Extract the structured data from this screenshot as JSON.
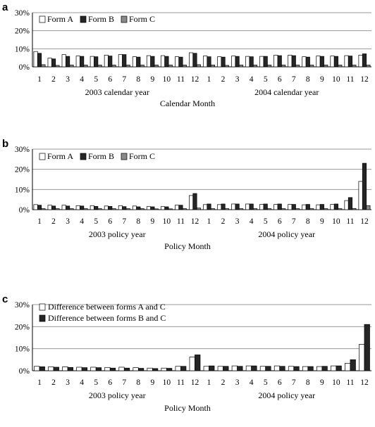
{
  "chart_data": [
    {
      "panel_label": "a",
      "type": "bar",
      "ylim": [
        0,
        30
      ],
      "yticks": [
        "0%",
        "10%",
        "20%",
        "30%"
      ],
      "grid": true,
      "legend_placement": "top-left",
      "categories": [
        "1",
        "2",
        "3",
        "4",
        "5",
        "6",
        "7",
        "8",
        "9",
        "10",
        "11",
        "12",
        "1",
        "2",
        "3",
        "4",
        "5",
        "6",
        "7",
        "8",
        "9",
        "10",
        "11",
        "12"
      ],
      "groups": [
        "2003 calendar year",
        "2004 calendar year"
      ],
      "xlabel": "Calendar Month",
      "series": [
        {
          "name": "Form A",
          "color": "#ffffff",
          "values": [
            8.5,
            4.8,
            6.8,
            6.0,
            5.8,
            6.5,
            6.8,
            5.6,
            6.2,
            6.2,
            5.6,
            7.8,
            6.0,
            5.6,
            6.0,
            5.8,
            5.8,
            6.5,
            6.5,
            5.6,
            6.0,
            6.0,
            6.2,
            6.5
          ]
        },
        {
          "name": "Form B",
          "color": "#262626",
          "values": [
            7.5,
            4.4,
            5.8,
            5.8,
            5.6,
            6.0,
            6.8,
            5.4,
            5.8,
            5.8,
            5.4,
            7.5,
            5.6,
            5.4,
            5.8,
            5.6,
            5.8,
            6.2,
            6.2,
            5.4,
            5.8,
            5.8,
            6.0,
            7.2
          ]
        },
        {
          "name": "Form C",
          "color": "#8a8a8a",
          "values": [
            1.2,
            0.8,
            1.0,
            1.0,
            1.0,
            1.0,
            1.0,
            1.0,
            1.0,
            1.0,
            1.0,
            1.2,
            1.0,
            0.8,
            1.0,
            1.0,
            1.0,
            1.0,
            1.0,
            1.0,
            1.0,
            1.0,
            1.0,
            1.0
          ]
        }
      ]
    },
    {
      "panel_label": "b",
      "type": "bar",
      "ylim": [
        0,
        30
      ],
      "yticks": [
        "0%",
        "10%",
        "20%",
        "30%"
      ],
      "grid": true,
      "legend_placement": "top-left",
      "categories": [
        "1",
        "2",
        "3",
        "4",
        "5",
        "6",
        "7",
        "8",
        "9",
        "10",
        "11",
        "12",
        "1",
        "2",
        "3",
        "4",
        "5",
        "6",
        "7",
        "8",
        "9",
        "10",
        "11",
        "12"
      ],
      "groups": [
        "2003 policy year",
        "2004 policy year"
      ],
      "xlabel": "Policy Month",
      "series": [
        {
          "name": "Form A",
          "color": "#ffffff",
          "values": [
            2.5,
            2.2,
            2.2,
            2.0,
            2.0,
            1.8,
            2.0,
            1.8,
            1.5,
            1.5,
            2.2,
            7.0,
            2.5,
            2.5,
            2.8,
            2.8,
            2.6,
            2.6,
            2.6,
            2.4,
            2.4,
            2.6,
            4.5,
            14.0
          ]
        },
        {
          "name": "Form B",
          "color": "#262626",
          "values": [
            2.2,
            1.8,
            1.8,
            1.8,
            1.6,
            1.6,
            1.5,
            1.4,
            1.4,
            1.4,
            2.2,
            8.0,
            2.8,
            2.8,
            2.8,
            2.8,
            2.8,
            2.8,
            2.6,
            2.6,
            2.6,
            2.8,
            6.0,
            23.0
          ]
        },
        {
          "name": "Form C",
          "color": "#8a8a8a",
          "values": [
            0.5,
            0.5,
            0.5,
            0.5,
            0.5,
            0.5,
            0.5,
            0.5,
            0.4,
            0.4,
            0.5,
            0.8,
            0.5,
            0.5,
            0.5,
            0.5,
            0.5,
            0.5,
            0.5,
            0.5,
            0.5,
            0.5,
            0.6,
            2.0
          ]
        }
      ]
    },
    {
      "panel_label": "c",
      "type": "bar",
      "ylim": [
        0,
        30
      ],
      "yticks": [
        "0%",
        "10%",
        "20%",
        "30%"
      ],
      "grid": true,
      "legend_placement": "top-left",
      "categories": [
        "1",
        "2",
        "3",
        "4",
        "5",
        "6",
        "7",
        "8",
        "9",
        "10",
        "11",
        "12",
        "1",
        "2",
        "3",
        "4",
        "5",
        "6",
        "7",
        "8",
        "9",
        "10",
        "11",
        "12"
      ],
      "groups": [
        "2003 policy year",
        "2004 policy year"
      ],
      "xlabel": "Policy Month",
      "series": [
        {
          "name": "Difference between forms A and C",
          "color": "#ffffff",
          "values": [
            2.0,
            1.8,
            1.8,
            1.6,
            1.6,
            1.5,
            1.6,
            1.4,
            1.2,
            1.2,
            2.0,
            6.2,
            2.0,
            2.0,
            2.2,
            2.2,
            2.0,
            2.2,
            2.0,
            1.9,
            1.9,
            2.2,
            3.4,
            12.0
          ]
        },
        {
          "name": "Difference between forms B and C",
          "color": "#262626",
          "values": [
            1.8,
            1.6,
            1.5,
            1.4,
            1.4,
            1.2,
            1.2,
            1.1,
            1.0,
            1.1,
            2.0,
            7.2,
            2.2,
            2.0,
            2.0,
            2.2,
            2.0,
            2.0,
            1.9,
            1.9,
            2.0,
            2.2,
            5.0,
            21.0
          ]
        }
      ]
    }
  ]
}
